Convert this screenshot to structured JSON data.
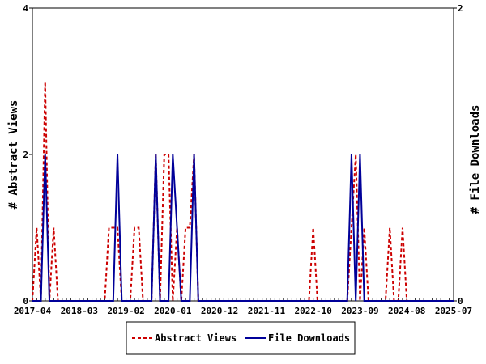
{
  "chart_data": {
    "type": "line",
    "x_tick_labels": [
      "2017-04",
      "2018-03",
      "2019-02",
      "2020-01",
      "2020-12",
      "2021-11",
      "2022-10",
      "2023-09",
      "2024-08",
      "2025-07"
    ],
    "ylabel_left": "# Abstract Views",
    "ylabel_right": "# File Downloads",
    "ylim_left": [
      0,
      4
    ],
    "ylim_right": [
      0,
      2
    ],
    "y_ticks_left": [
      "0",
      "2",
      "4"
    ],
    "y_ticks_right": [
      "0",
      "2"
    ],
    "x_range_months": [
      "2017-04",
      "2025-07"
    ],
    "grid": false,
    "legend_position": "bottom-center",
    "series": [
      {
        "name": "Abstract Views",
        "axis": "left",
        "color": "#cc0000",
        "style": "dashed",
        "x": [
          "2017-04",
          "2017-05",
          "2017-06",
          "2017-07",
          "2017-08",
          "2017-09",
          "2017-10",
          "2017-11",
          "2017-12",
          "2018-01",
          "2018-02",
          "2018-03",
          "2018-04",
          "2018-05",
          "2018-06",
          "2018-07",
          "2018-08",
          "2018-09",
          "2018-10",
          "2018-11",
          "2018-12",
          "2019-01",
          "2019-02",
          "2019-03",
          "2019-04",
          "2019-05",
          "2019-06",
          "2019-07",
          "2019-08",
          "2019-09",
          "2019-10",
          "2019-11",
          "2019-12",
          "2020-01",
          "2020-02",
          "2020-03",
          "2020-04",
          "2020-05",
          "2020-06",
          "2020-07",
          "2020-08",
          "2020-09",
          "2020-10",
          "2020-11",
          "2020-12",
          "2021-01",
          "2021-02",
          "2021-03",
          "2021-04",
          "2021-05",
          "2021-06",
          "2021-07",
          "2021-08",
          "2021-09",
          "2021-10",
          "2021-11",
          "2021-12",
          "2022-01",
          "2022-02",
          "2022-03",
          "2022-04",
          "2022-05",
          "2022-06",
          "2022-07",
          "2022-08",
          "2022-09",
          "2022-10",
          "2022-11",
          "2022-12",
          "2023-01",
          "2023-02",
          "2023-03",
          "2023-04",
          "2023-05",
          "2023-06",
          "2023-07",
          "2023-08",
          "2023-09",
          "2023-10",
          "2023-11",
          "2023-12",
          "2024-01",
          "2024-02",
          "2024-03",
          "2024-04",
          "2024-05",
          "2024-06",
          "2024-07",
          "2024-08",
          "2024-09",
          "2024-10",
          "2024-11",
          "2024-12",
          "2025-01",
          "2025-02",
          "2025-03",
          "2025-04",
          "2025-05",
          "2025-06",
          "2025-07"
        ],
        "values": [
          0,
          1,
          0,
          3,
          0,
          1,
          0,
          0,
          0,
          0,
          0,
          0,
          0,
          0,
          0,
          0,
          0,
          0,
          1,
          1,
          1,
          0,
          0,
          0,
          1,
          1,
          0,
          0,
          0,
          2,
          0,
          2,
          2,
          0,
          1,
          0,
          1,
          1,
          2,
          0,
          0,
          0,
          0,
          0,
          0,
          0,
          0,
          0,
          0,
          0,
          0,
          0,
          0,
          0,
          0,
          0,
          0,
          0,
          0,
          0,
          0,
          0,
          0,
          0,
          0,
          0,
          1,
          0,
          0,
          0,
          0,
          0,
          0,
          0,
          0,
          1,
          2,
          0,
          1,
          0,
          0,
          0,
          0,
          0,
          1,
          0,
          0,
          1,
          0,
          0,
          0,
          0,
          0,
          0,
          0,
          0,
          0,
          0,
          0,
          0
        ]
      },
      {
        "name": "File Downloads",
        "axis": "right",
        "color": "#000099",
        "style": "solid",
        "x": [
          "2017-04",
          "2017-05",
          "2017-06",
          "2017-07",
          "2017-08",
          "2017-09",
          "2017-10",
          "2017-11",
          "2017-12",
          "2018-01",
          "2018-02",
          "2018-03",
          "2018-04",
          "2018-05",
          "2018-06",
          "2018-07",
          "2018-08",
          "2018-09",
          "2018-10",
          "2018-11",
          "2018-12",
          "2019-01",
          "2019-02",
          "2019-03",
          "2019-04",
          "2019-05",
          "2019-06",
          "2019-07",
          "2019-08",
          "2019-09",
          "2019-10",
          "2019-11",
          "2019-12",
          "2020-01",
          "2020-02",
          "2020-03",
          "2020-04",
          "2020-05",
          "2020-06",
          "2020-07",
          "2020-08",
          "2020-09",
          "2020-10",
          "2020-11",
          "2020-12",
          "2021-01",
          "2021-02",
          "2021-03",
          "2021-04",
          "2021-05",
          "2021-06",
          "2021-07",
          "2021-08",
          "2021-09",
          "2021-10",
          "2021-11",
          "2021-12",
          "2022-01",
          "2022-02",
          "2022-03",
          "2022-04",
          "2022-05",
          "2022-06",
          "2022-07",
          "2022-08",
          "2022-09",
          "2022-10",
          "2022-11",
          "2022-12",
          "2023-01",
          "2023-02",
          "2023-03",
          "2023-04",
          "2023-05",
          "2023-06",
          "2023-07",
          "2023-08",
          "2023-09",
          "2023-10",
          "2023-11",
          "2023-12",
          "2024-01",
          "2024-02",
          "2024-03",
          "2024-04",
          "2024-05",
          "2024-06",
          "2024-07",
          "2024-08",
          "2024-09",
          "2024-10",
          "2024-11",
          "2024-12",
          "2025-01",
          "2025-02",
          "2025-03",
          "2025-04",
          "2025-05",
          "2025-06",
          "2025-07"
        ],
        "values": [
          0,
          0,
          0,
          1,
          0,
          0,
          0,
          0,
          0,
          0,
          0,
          0,
          0,
          0,
          0,
          0,
          0,
          0,
          0,
          0,
          1,
          0,
          0,
          0,
          0,
          0,
          0,
          0,
          0,
          1,
          0,
          0,
          0,
          1,
          0.5,
          0,
          0,
          0,
          1,
          0,
          0,
          0,
          0,
          0,
          0,
          0,
          0,
          0,
          0,
          0,
          0,
          0,
          0,
          0,
          0,
          0,
          0,
          0,
          0,
          0,
          0,
          0,
          0,
          0,
          0,
          0,
          0,
          0,
          0,
          0,
          0,
          0,
          0,
          0,
          0,
          1,
          0,
          1,
          0,
          0,
          0,
          0,
          0,
          0,
          0,
          0,
          0,
          0,
          0,
          0,
          0,
          0,
          0,
          0,
          0,
          0,
          0,
          0,
          0,
          0
        ]
      }
    ]
  }
}
